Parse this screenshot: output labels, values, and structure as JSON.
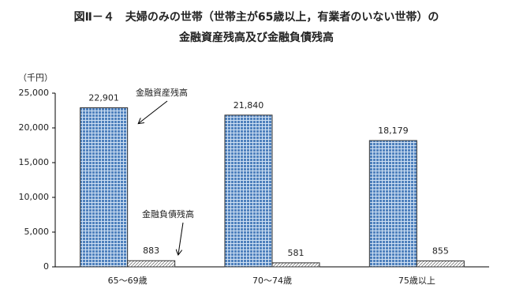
{
  "chart_data": {
    "type": "bar",
    "title": "図Ⅱ－４　夫婦のみの世帯（世帯主が65歳以上，有業者のいない世帯）の",
    "subtitle": "金融資産残高及び金融負債残高",
    "y_unit": "（千円）",
    "categories": [
      "65～69歳",
      "70～74歳",
      "75歳以上"
    ],
    "series": [
      {
        "name": "金融資産残高",
        "color": "#4f81bd",
        "values": [
          22901,
          21840,
          18179
        ],
        "value_labels": [
          "22,901",
          "21,840",
          "18,179"
        ]
      },
      {
        "name": "金融負債残高",
        "color": "#ffffff",
        "values": [
          883,
          581,
          855
        ]
      }
    ],
    "ylim": [
      0,
      25000
    ],
    "yticks": [
      0,
      {
        "value": 5000,
        "label": "5,000"
      },
      {
        "value": 10000,
        "label": "10,000"
      },
      {
        "value": 15000,
        "label": "15,000"
      },
      {
        "value": 20000,
        "label": "20,000"
      },
      {
        "value": 25000,
        "label": "25,000"
      }
    ]
  }
}
